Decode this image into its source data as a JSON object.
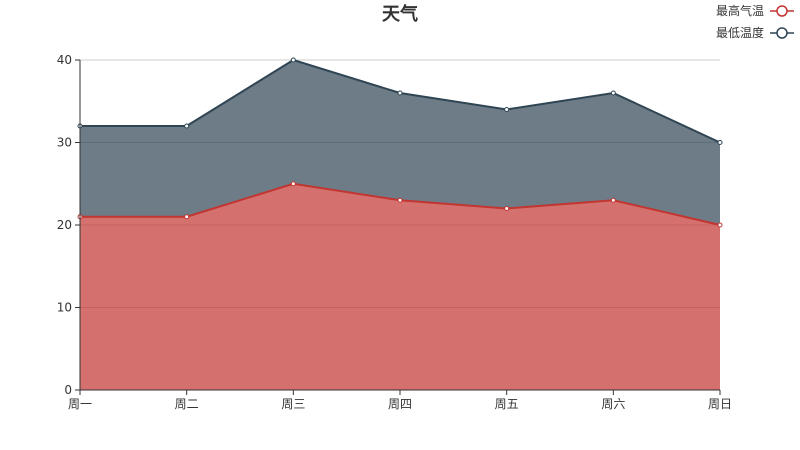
{
  "chart_data": {
    "type": "area",
    "title": "天气",
    "categories": [
      "周一",
      "周二",
      "周三",
      "周四",
      "周五",
      "周六",
      "周日"
    ],
    "series": [
      {
        "name": "最高气温",
        "values": [
          21,
          21,
          25,
          23,
          22,
          23,
          20
        ],
        "color": "#c23531"
      },
      {
        "name": "最低温度",
        "values": [
          11,
          11,
          15,
          13,
          12,
          13,
          10
        ],
        "color": "#2f4554"
      }
    ],
    "stacked": true,
    "cumulative_top": [
      32,
      32,
      40,
      36,
      34,
      36,
      30
    ],
    "y_ticks": [
      0,
      10,
      20,
      30,
      40
    ],
    "ylim": [
      0,
      40
    ],
    "grid": true,
    "legend": {
      "placement": "top-right"
    },
    "colors": {
      "axis": "#333333",
      "grid": "#cccccc"
    }
  }
}
